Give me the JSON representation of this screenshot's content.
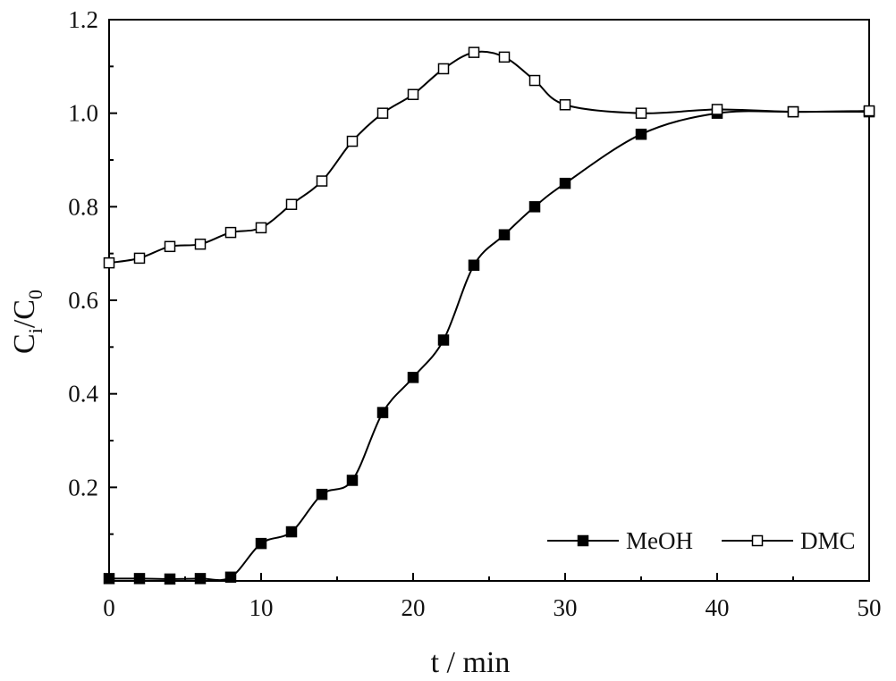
{
  "chart_data": {
    "type": "line",
    "title": "",
    "xlabel": "t / min",
    "ylabel": {
      "main": "C",
      "sub1": "i",
      "sep": "/C",
      "sub2": "0"
    },
    "xlim": [
      0,
      50
    ],
    "ylim": [
      0,
      1.2
    ],
    "xticks": [
      0,
      10,
      20,
      30,
      40,
      50
    ],
    "yticks": [
      0.2,
      0.4,
      0.6,
      0.8,
      1.0,
      1.2
    ],
    "xtick_labels": [
      "0",
      "10",
      "20",
      "30",
      "40",
      "50"
    ],
    "ytick_labels": [
      "0.2",
      "0.4",
      "0.6",
      "0.8",
      "1.0",
      "1.2"
    ],
    "grid": false,
    "legend_position": "bottom-right",
    "series": [
      {
        "name": "MeOH",
        "marker": "filled-square",
        "color": "#000000",
        "x": [
          0,
          2,
          4,
          6,
          8,
          10,
          12,
          14,
          16,
          18,
          20,
          22,
          24,
          26,
          28,
          30,
          35,
          40,
          45,
          50
        ],
        "y": [
          0.005,
          0.005,
          0.004,
          0.005,
          0.008,
          0.08,
          0.105,
          0.185,
          0.215,
          0.36,
          0.435,
          0.515,
          0.675,
          0.74,
          0.8,
          0.85,
          0.955,
          1.0,
          1.003,
          1.003
        ]
      },
      {
        "name": "DMC",
        "marker": "open-square",
        "color": "#000000",
        "x": [
          0,
          2,
          4,
          6,
          8,
          10,
          12,
          14,
          16,
          18,
          20,
          22,
          24,
          26,
          28,
          30,
          35,
          40,
          45,
          50
        ],
        "y": [
          0.68,
          0.69,
          0.715,
          0.72,
          0.745,
          0.755,
          0.805,
          0.855,
          0.94,
          1.0,
          1.04,
          1.095,
          1.13,
          1.12,
          1.07,
          1.018,
          1.0,
          1.008,
          1.003,
          1.005
        ]
      }
    ]
  }
}
